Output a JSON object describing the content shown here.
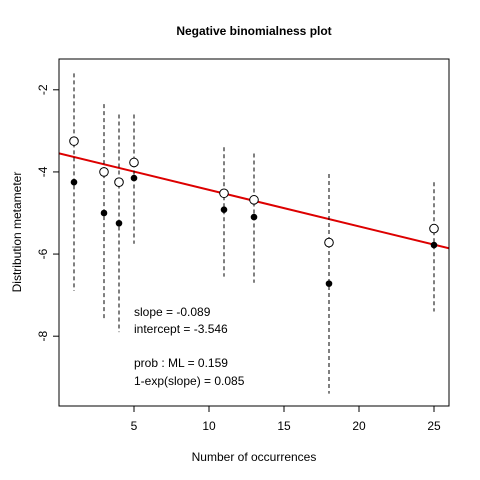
{
  "chart_data": {
    "type": "scatter",
    "title": "Negative binomialness plot",
    "xlabel": "Number of occurrences",
    "ylabel": "Distribution metameter",
    "xlim": [
      0,
      26
    ],
    "ylim": [
      -9.7,
      -1.25
    ],
    "xticks": [
      5,
      10,
      15,
      20,
      25
    ],
    "yticks": [
      -2,
      -4,
      -6,
      -8
    ],
    "grid": false,
    "series": [
      {
        "marker": "open-circle",
        "points": [
          {
            "x": 1,
            "y": -3.25
          },
          {
            "x": 3,
            "y": -4.0
          },
          {
            "x": 4,
            "y": -4.25
          },
          {
            "x": 5,
            "y": -3.77
          },
          {
            "x": 11,
            "y": -4.52
          },
          {
            "x": 13,
            "y": -4.68
          },
          {
            "x": 18,
            "y": -5.72
          },
          {
            "x": 25,
            "y": -5.38
          }
        ]
      },
      {
        "marker": "filled-circle",
        "points": [
          {
            "x": 1,
            "y": -4.25
          },
          {
            "x": 3,
            "y": -5.0
          },
          {
            "x": 4,
            "y": -5.25
          },
          {
            "x": 5,
            "y": -4.15
          },
          {
            "x": 11,
            "y": -4.92
          },
          {
            "x": 13,
            "y": -5.1
          },
          {
            "x": 18,
            "y": -6.72
          },
          {
            "x": 25,
            "y": -5.78
          }
        ]
      }
    ],
    "intervals": [
      {
        "x": 1,
        "lower": -6.9,
        "upper": -1.6
      },
      {
        "x": 3,
        "lower": -7.6,
        "upper": -2.35
      },
      {
        "x": 4,
        "lower": -7.9,
        "upper": -2.6
      },
      {
        "x": 5,
        "lower": -5.75,
        "upper": -2.6
      },
      {
        "x": 11,
        "lower": -6.55,
        "upper": -3.4
      },
      {
        "x": 13,
        "lower": -6.7,
        "upper": -3.55
      },
      {
        "x": 18,
        "lower": -9.4,
        "upper": -4.05
      },
      {
        "x": 25,
        "lower": -7.4,
        "upper": -4.25
      }
    ],
    "fit_line": {
      "slope": -0.089,
      "intercept": -3.546,
      "color": "#dd0000"
    },
    "annotations": [
      "slope = -0.089",
      "intercept = -3.546",
      "prob : ML = 0.159",
      "1-exp(slope) = 0.085"
    ]
  }
}
